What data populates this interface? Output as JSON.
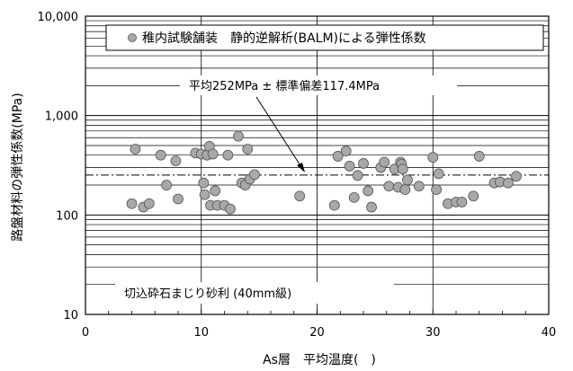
{
  "chart_data": {
    "type": "scatter",
    "title": "",
    "xlabel": "As層　平均温度(　)",
    "ylabel": "路盤材料の弾性係数(MPa)",
    "xlim": [
      0,
      40
    ],
    "ylim": [
      10,
      10000
    ],
    "y_scale": "log",
    "x_ticks": [
      "0",
      "10",
      "20",
      "30",
      "40"
    ],
    "y_ticks": [
      "10",
      "100",
      "1,000",
      "10,000"
    ],
    "grid": true,
    "legend": {
      "position": "top",
      "entries": [
        "稚内試験舗装　静的逆解析(BALM)による弾性係数"
      ]
    },
    "annotations": {
      "mean_label": "平均252MPa ± 標準偏差117.4MPa",
      "material_label": "切込砕石まじり砂利 (40mm級)"
    },
    "reference_lines": {
      "mean": 252,
      "mean_plus_sd": 369.4,
      "mean_minus_sd": 134.6
    },
    "series": [
      {
        "name": "稚内試験舗装　静的逆解析(BALM)による弾性係数",
        "color": "#a8a8a8",
        "points": [
          [
            4.0,
            130
          ],
          [
            4.3,
            460
          ],
          [
            5.0,
            120
          ],
          [
            5.5,
            130
          ],
          [
            6.5,
            400
          ],
          [
            7.0,
            200
          ],
          [
            7.8,
            350
          ],
          [
            8.0,
            145
          ],
          [
            9.5,
            420
          ],
          [
            10.0,
            410
          ],
          [
            10.2,
            210
          ],
          [
            10.3,
            160
          ],
          [
            10.5,
            400
          ],
          [
            10.7,
            490
          ],
          [
            10.8,
            125
          ],
          [
            11.0,
            410
          ],
          [
            11.2,
            175
          ],
          [
            11.4,
            125
          ],
          [
            12.0,
            125
          ],
          [
            12.3,
            400
          ],
          [
            12.5,
            115
          ],
          [
            13.2,
            620
          ],
          [
            13.5,
            210
          ],
          [
            13.8,
            200
          ],
          [
            14.0,
            460
          ],
          [
            14.2,
            230
          ],
          [
            14.6,
            255
          ],
          [
            18.5,
            155
          ],
          [
            21.5,
            125
          ],
          [
            21.8,
            390
          ],
          [
            22.5,
            440
          ],
          [
            22.8,
            310
          ],
          [
            23.2,
            150
          ],
          [
            23.5,
            250
          ],
          [
            24.0,
            330
          ],
          [
            24.4,
            175
          ],
          [
            24.7,
            120
          ],
          [
            25.5,
            300
          ],
          [
            25.8,
            340
          ],
          [
            26.2,
            195
          ],
          [
            26.7,
            290
          ],
          [
            27.0,
            190
          ],
          [
            27.2,
            340
          ],
          [
            27.3,
            325
          ],
          [
            27.4,
            290
          ],
          [
            27.6,
            180
          ],
          [
            27.8,
            225
          ],
          [
            28.8,
            195
          ],
          [
            30.0,
            380
          ],
          [
            30.3,
            180
          ],
          [
            30.5,
            260
          ],
          [
            31.3,
            130
          ],
          [
            32.0,
            135
          ],
          [
            32.5,
            135
          ],
          [
            33.5,
            155
          ],
          [
            34.0,
            390
          ],
          [
            35.3,
            210
          ],
          [
            35.8,
            215
          ],
          [
            36.5,
            210
          ],
          [
            37.2,
            245
          ]
        ]
      }
    ]
  }
}
